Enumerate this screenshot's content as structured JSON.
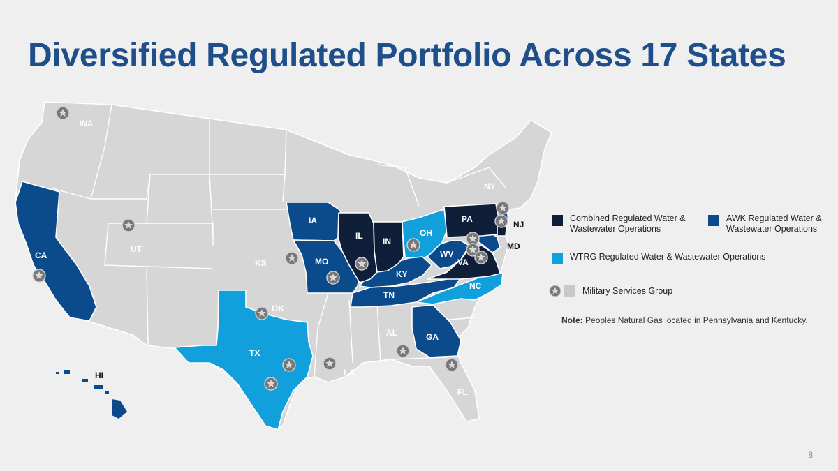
{
  "title": "Diversified Regulated Portfolio Across 17 States",
  "page_number": "8",
  "colors": {
    "combined": "#0f1f3a",
    "awk": "#0b4a8b",
    "wtrg": "#12a0dc",
    "military": "#c8c8c8",
    "other": "#d6d6d6",
    "title": "#1f4f8b"
  },
  "legend": {
    "combined": "Combined Regulated Water & Wastewater Operations",
    "combined_line1": "Combined Regulated Water &",
    "combined_line2": "Wastewater Operations",
    "awk": "AWK Regulated Water & Wastewater Operations",
    "awk_line1": "AWK Regulated Water &",
    "awk_line2": "Wastewater Operations",
    "wtrg": "WTRG Regulated Water & Wastewater Operations",
    "military": "Military Services Group"
  },
  "note": {
    "label": "Note:",
    "text": "Peoples Natural Gas located in Pennsylvania and Kentucky."
  },
  "states": {
    "WA": "WA",
    "CA": "CA",
    "UT": "UT",
    "KS": "KS",
    "OK": "OK",
    "TX": "TX",
    "IA": "IA",
    "MO": "MO",
    "IL": "IL",
    "IN": "IN",
    "OH": "OH",
    "KY": "KY",
    "TN": "TN",
    "WV": "WV",
    "VA": "VA",
    "NC": "NC",
    "PA": "PA",
    "NY": "NY",
    "NJ": "NJ",
    "MD": "MD",
    "GA": "GA",
    "AL": "AL",
    "LA": "LA",
    "FL": "FL",
    "HI": "HI"
  },
  "map_icon": "star-in-circle-icon"
}
